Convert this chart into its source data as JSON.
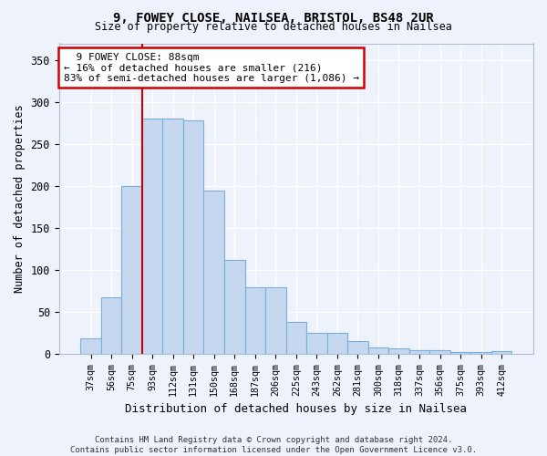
{
  "title1": "9, FOWEY CLOSE, NAILSEA, BRISTOL, BS48 2UR",
  "title2": "Size of property relative to detached houses in Nailsea",
  "xlabel": "Distribution of detached houses by size in Nailsea",
  "ylabel": "Number of detached properties",
  "categories": [
    "37sqm",
    "56sqm",
    "75sqm",
    "93sqm",
    "112sqm",
    "131sqm",
    "150sqm",
    "168sqm",
    "187sqm",
    "206sqm",
    "225sqm",
    "243sqm",
    "262sqm",
    "281sqm",
    "300sqm",
    "318sqm",
    "337sqm",
    "356sqm",
    "375sqm",
    "393sqm",
    "412sqm"
  ],
  "values": [
    18,
    67,
    200,
    280,
    280,
    278,
    195,
    112,
    79,
    79,
    38,
    25,
    25,
    15,
    8,
    7,
    4,
    4,
    2,
    2,
    3
  ],
  "bar_color": "#c5d8f0",
  "bar_edge_color": "#7aaed6",
  "red_line_x": 2.5,
  "red_line_color": "#cc0000",
  "annotation_text_line1": "9 FOWEY CLOSE: 88sqm",
  "annotation_text_line2": "← 16% of detached houses are smaller (216)",
  "annotation_text_line3": "83% of semi-detached houses are larger (1,086) →",
  "annotation_box_facecolor": "#ffffff",
  "annotation_box_edgecolor": "#cc0000",
  "background_color": "#eef2fb",
  "grid_color": "#ffffff",
  "footnote1": "Contains HM Land Registry data © Crown copyright and database right 2024.",
  "footnote2": "Contains public sector information licensed under the Open Government Licence v3.0.",
  "ylim": [
    0,
    370
  ],
  "yticks": [
    0,
    50,
    100,
    150,
    200,
    250,
    300,
    350
  ]
}
